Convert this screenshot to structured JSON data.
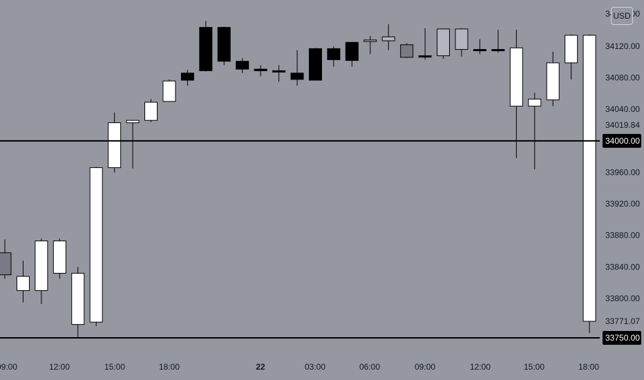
{
  "chart_data": {
    "type": "candlestick",
    "currency": "USD",
    "x_tick_labels": [
      "09:00",
      "12:00",
      "15:00",
      "18:00",
      "22",
      "03:00",
      "06:00",
      "09:00",
      "12:00",
      "15:00",
      "18:00"
    ],
    "y_tick_labels": [
      "34120.00",
      "34080.00",
      "34040.00",
      "33960.00",
      "33920.00",
      "33880.00",
      "33840.00",
      "33800.00"
    ],
    "ylim": [
      33735,
      34160
    ],
    "horizontal_lines": [
      {
        "price": 34000.0,
        "label": "34000.00"
      },
      {
        "price": 33750.0,
        "label": "33750.00"
      }
    ],
    "price_labels": [
      {
        "price": 34019.84,
        "label": "34019.84"
      },
      {
        "price": 33771.07,
        "label": "33771.07"
      }
    ],
    "candles": [
      {
        "o": 33858,
        "h": 33875,
        "l": 33825,
        "c": 33830,
        "color": "grey"
      },
      {
        "o": 33828,
        "h": 33848,
        "l": 33795,
        "c": 33810,
        "color": "white"
      },
      {
        "o": 33810,
        "h": 33876,
        "l": 33793,
        "c": 33873,
        "color": "white"
      },
      {
        "o": 33873,
        "h": 33876,
        "l": 33825,
        "c": 33832,
        "color": "white"
      },
      {
        "o": 33832,
        "h": 33840,
        "l": 33750,
        "c": 33767,
        "color": "white"
      },
      {
        "o": 33770,
        "h": 33967,
        "l": 33765,
        "c": 33966,
        "color": "white"
      },
      {
        "o": 33966,
        "h": 34036,
        "l": 33960,
        "c": 34023,
        "color": "white"
      },
      {
        "o": 34023,
        "h": 34026,
        "l": 33965,
        "c": 34026,
        "color": "white"
      },
      {
        "o": 34026,
        "h": 34053,
        "l": 34024,
        "c": 34049,
        "color": "white"
      },
      {
        "o": 34050,
        "h": 34078,
        "l": 34050,
        "c": 34076,
        "color": "white"
      },
      {
        "o": 34086,
        "h": 34090,
        "l": 34070,
        "c": 34077,
        "color": "black"
      },
      {
        "o": 34089,
        "h": 34152,
        "l": 34088,
        "c": 34144,
        "color": "black"
      },
      {
        "o": 34144,
        "h": 34145,
        "l": 34096,
        "c": 34101,
        "color": "black"
      },
      {
        "o": 34101,
        "h": 34105,
        "l": 34086,
        "c": 34091,
        "color": "black"
      },
      {
        "o": 34091,
        "h": 34096,
        "l": 34082,
        "c": 34089,
        "color": "black"
      },
      {
        "o": 34089,
        "h": 34096,
        "l": 34075,
        "c": 34088,
        "color": "black"
      },
      {
        "o": 34086,
        "h": 34115,
        "l": 34070,
        "c": 34078,
        "color": "black"
      },
      {
        "o": 34117,
        "h": 34118,
        "l": 34077,
        "c": 34077,
        "color": "black"
      },
      {
        "o": 34117,
        "h": 34120,
        "l": 34094,
        "c": 34103,
        "color": "black"
      },
      {
        "o": 34125,
        "h": 34125,
        "l": 34094,
        "c": 34102,
        "color": "black"
      },
      {
        "o": 34126,
        "h": 34133,
        "l": 34110,
        "c": 34128,
        "color": "grey"
      },
      {
        "o": 34127,
        "h": 34148,
        "l": 34115,
        "c": 34132,
        "color": "grey"
      },
      {
        "o": 34106,
        "h": 34124,
        "l": 34105,
        "c": 34122,
        "color": "grey"
      },
      {
        "o": 34107,
        "h": 34143,
        "l": 34103,
        "c": 34108,
        "color": "black"
      },
      {
        "o": 34108,
        "h": 34142,
        "l": 34104,
        "c": 34142,
        "color": "grey"
      },
      {
        "o": 34142,
        "h": 34143,
        "l": 34107,
        "c": 34116,
        "color": "grey"
      },
      {
        "o": 34116,
        "h": 34129,
        "l": 34110,
        "c": 34115,
        "color": "black"
      },
      {
        "o": 34116,
        "h": 34141,
        "l": 34112,
        "c": 34115,
        "color": "black"
      },
      {
        "o": 34118,
        "h": 34141,
        "l": 33978,
        "c": 34044,
        "color": "white"
      },
      {
        "o": 34044,
        "h": 34061,
        "l": 33964,
        "c": 34053,
        "color": "white"
      },
      {
        "o": 34052,
        "h": 34113,
        "l": 34044,
        "c": 34099,
        "color": "white"
      },
      {
        "o": 34099,
        "h": 34135,
        "l": 34078,
        "c": 34134,
        "color": "white"
      },
      {
        "o": 34134,
        "h": 34135,
        "l": 33756,
        "c": 33771,
        "color": "white"
      }
    ]
  }
}
